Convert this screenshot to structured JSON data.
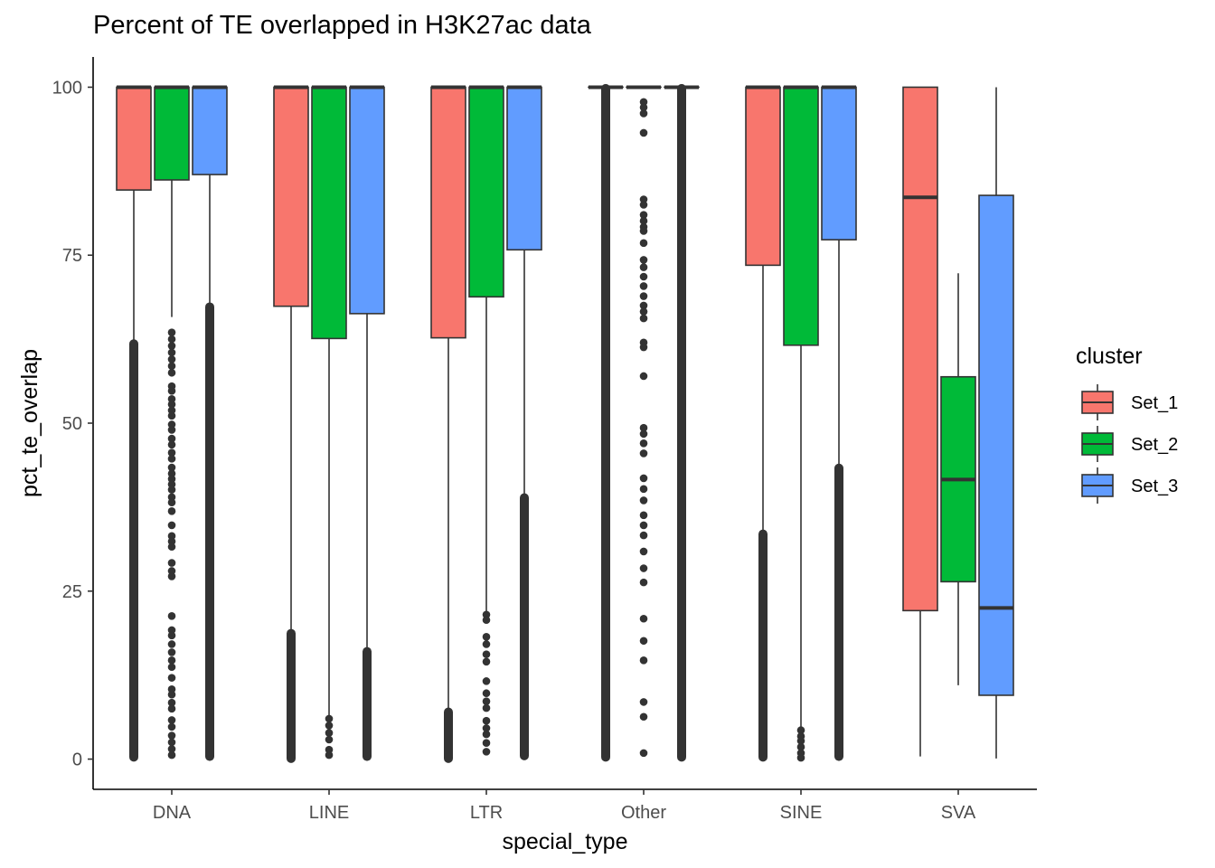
{
  "chart_data": {
    "type": "boxplot",
    "title": "Percent of TE overlapped in H3K27ac data",
    "xlabel": "special_type",
    "ylabel": "pct_te_overlap",
    "ylim": [
      -4.5,
      104.5
    ],
    "yticks": [
      0,
      25,
      50,
      75,
      100
    ],
    "categories": [
      "DNA",
      "LINE",
      "LTR",
      "Other",
      "SINE",
      "SVA"
    ],
    "legend": {
      "title": "cluster",
      "position": "right",
      "entries": [
        {
          "name": "Set_1",
          "color": "#F8766D"
        },
        {
          "name": "Set_2",
          "color": "#00BA38"
        },
        {
          "name": "Set_3",
          "color": "#619CFF"
        }
      ]
    },
    "series": [
      {
        "name": "Set_1",
        "color": "#F8766D",
        "boxes": [
          {
            "q1": 84.7,
            "median": 100,
            "q3": 100,
            "lower": 62,
            "upper": 100,
            "outliers": [],
            "dense": [
              0.3,
              61.8
            ]
          },
          {
            "q1": 67.4,
            "median": 100,
            "q3": 100,
            "lower": 19,
            "upper": 100,
            "outliers": [],
            "dense": [
              0.1,
              18.7
            ]
          },
          {
            "q1": 62.7,
            "median": 100,
            "q3": 100,
            "lower": 7.3,
            "upper": 100,
            "outliers": [],
            "dense": [
              0.1,
              7.0
            ]
          },
          {
            "q1": 100,
            "median": 100,
            "q3": 100,
            "lower": 100,
            "upper": 100,
            "outliers": [],
            "dense": [
              0.3,
              99.8
            ]
          },
          {
            "q1": 73.5,
            "median": 100,
            "q3": 100,
            "lower": 33.8,
            "upper": 100,
            "outliers": [],
            "dense": [
              0.3,
              33.5
            ]
          },
          {
            "q1": 22.1,
            "median": 83.6,
            "q3": 100,
            "lower": 0.4,
            "upper": 100,
            "outliers": [],
            "dense": null
          }
        ]
      },
      {
        "name": "Set_2",
        "color": "#00BA38",
        "boxes": [
          {
            "q1": 86.2,
            "median": 100,
            "q3": 100,
            "lower": 65.8,
            "upper": 100,
            "outliers": [
              63.5,
              62.5,
              61.5,
              60.5,
              59.5,
              58.5,
              57.5,
              55.5,
              54.8,
              53.6,
              52.8,
              51.9,
              51.1,
              49.8,
              49.0,
              47.7,
              46.8,
              45.6,
              44.7,
              43.4,
              42.5,
              41.7,
              40.9,
              40.1,
              39.0,
              38.2,
              36.9,
              34.8,
              33.2,
              32.4,
              31.6,
              29.2,
              28.0,
              27.2,
              21.3,
              19.2,
              18.4,
              17.1,
              15.9,
              14.7,
              13.7,
              12.1,
              10.4,
              9.6,
              8.4,
              7.5,
              5.8,
              4.8,
              3.5,
              2.5,
              1.5,
              0.6
            ],
            "dense": null
          },
          {
            "q1": 62.6,
            "median": 100,
            "q3": 100,
            "lower": 6.5,
            "upper": 100,
            "outliers": [
              6.0,
              5.0,
              3.9,
              2.9,
              1.4,
              0.6
            ],
            "dense": null
          },
          {
            "q1": 68.8,
            "median": 100,
            "q3": 100,
            "lower": 22,
            "upper": 100,
            "outliers": [
              21.5,
              20.7,
              18.2,
              17.1,
              15.6,
              14.5,
              11.6,
              9.8,
              8.6,
              7.6,
              5.7,
              4.6,
              3.7,
              2.4,
              1.1
            ],
            "dense": null
          },
          {
            "q1": 100,
            "median": 100,
            "q3": 100,
            "lower": 100,
            "upper": 100,
            "outliers": [
              97.8,
              97.0,
              96.1,
              93.2,
              83.3,
              82.5,
              81.0,
              80.1,
              79.2,
              78.6,
              76.8,
              74.3,
              73.2,
              71.8,
              70.4,
              68.9,
              67.5,
              66.6,
              65.6,
              62.0,
              61.3,
              57.0,
              49.3,
              48.4,
              47.0,
              45.5,
              41.8,
              40.2,
              38.5,
              36.3,
              34.8,
              33.3,
              30.9,
              28.4,
              26.3,
              20.9,
              17.6,
              14.7,
              8.5,
              6.3,
              0.9
            ],
            "dense": null
          },
          {
            "q1": 61.6,
            "median": 100,
            "q3": 100,
            "lower": 4.5,
            "upper": 100,
            "outliers": [
              4.3,
              3.4,
              2.7,
              1.8,
              0.9,
              0.2
            ],
            "dense": null
          },
          {
            "q1": 26.4,
            "median": 41.6,
            "q3": 56.9,
            "lower": 11,
            "upper": 72.3,
            "outliers": [],
            "dense": null
          }
        ]
      },
      {
        "name": "Set_3",
        "color": "#619CFF",
        "boxes": [
          {
            "q1": 87.0,
            "median": 100,
            "q3": 100,
            "lower": 67.5,
            "upper": 100,
            "outliers": [],
            "dense": [
              0.4,
              67.3
            ]
          },
          {
            "q1": 66.3,
            "median": 100,
            "q3": 100,
            "lower": 16.2,
            "upper": 100,
            "outliers": [],
            "dense": [
              0.4,
              16.0
            ]
          },
          {
            "q1": 75.8,
            "median": 100,
            "q3": 100,
            "lower": 39.2,
            "upper": 100,
            "outliers": [],
            "dense": [
              0.5,
              38.9
            ]
          },
          {
            "q1": 100,
            "median": 100,
            "q3": 100,
            "lower": 100,
            "upper": 100,
            "outliers": [],
            "dense": [
              0.3,
              99.8
            ]
          },
          {
            "q1": 77.3,
            "median": 100,
            "q3": 100,
            "lower": 43.6,
            "upper": 100,
            "outliers": [],
            "dense": [
              0.4,
              43.3
            ]
          },
          {
            "q1": 9.5,
            "median": 22.5,
            "q3": 83.9,
            "lower": 0.1,
            "upper": 100,
            "outliers": [],
            "dense": null
          }
        ]
      }
    ]
  }
}
